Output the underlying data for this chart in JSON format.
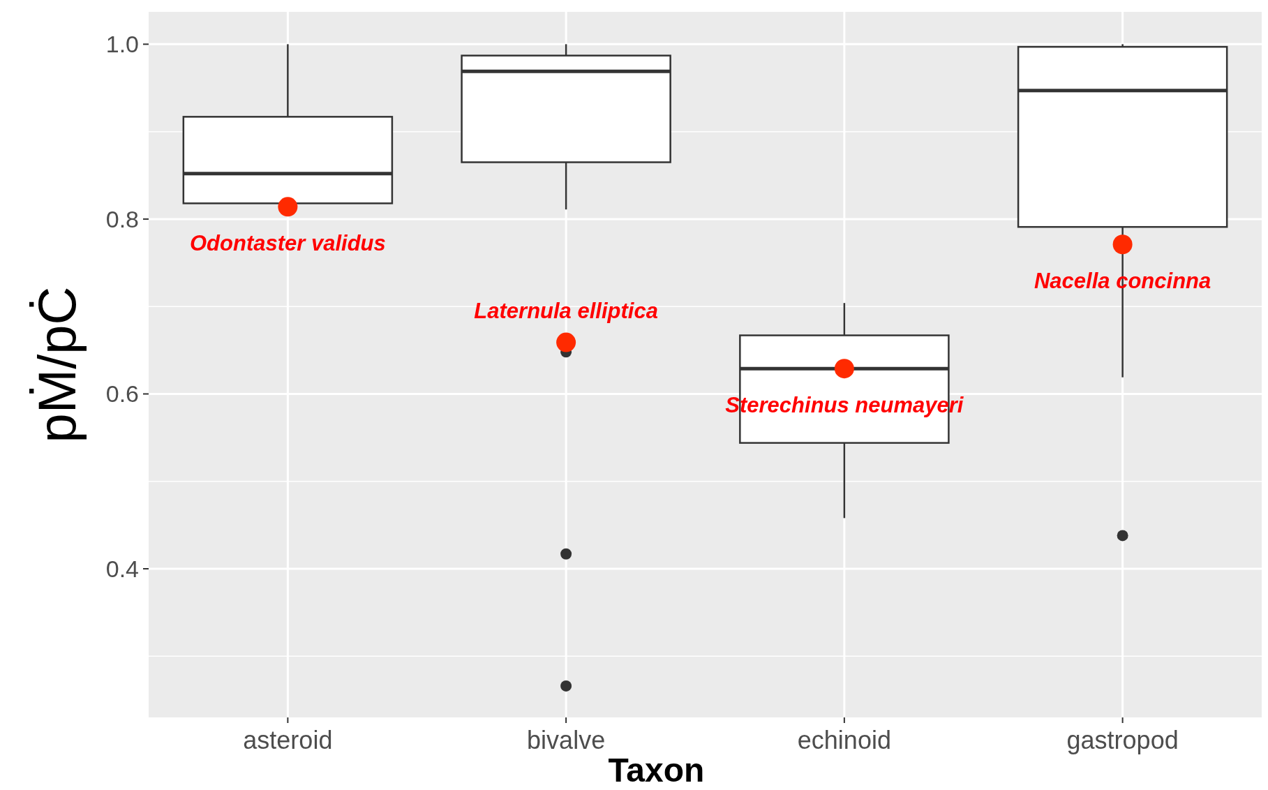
{
  "chart_data": {
    "type": "box",
    "xlabel": "Taxon",
    "ylabel": "pṀ/pĊ",
    "categories": [
      "asteroid",
      "bivalve",
      "echinoid",
      "gastropod"
    ],
    "boxes": [
      {
        "low": 0.818,
        "q1": 0.818,
        "median": 0.852,
        "q3": 0.917,
        "high": 1.0
      },
      {
        "low": 0.811,
        "q1": 0.865,
        "median": 0.969,
        "q3": 0.987,
        "high": 1.0,
        "outliers": [
          0.648,
          0.417,
          0.266
        ]
      },
      {
        "low": 0.458,
        "q1": 0.544,
        "median": 0.629,
        "q3": 0.667,
        "high": 0.704
      },
      {
        "low": 0.619,
        "q1": 0.791,
        "median": 0.947,
        "q3": 0.997,
        "high": 1.0,
        "outliers": [
          0.438
        ]
      }
    ],
    "series": [
      {
        "type": "scatter",
        "color": "#ff2a00",
        "x": [
          "asteroid",
          "bivalve",
          "echinoid",
          "gastropod"
        ],
        "values": [
          0.814,
          0.659,
          0.629,
          0.771
        ]
      }
    ],
    "ylim": [
      0.23,
      1.037
    ],
    "yticks": [
      {
        "value": 0.3,
        "label": null
      },
      0.4,
      {
        "value": 0.5,
        "label": null
      },
      0.6,
      {
        "value": 0.7,
        "label": null
      },
      0.8,
      {
        "value": 0.9,
        "label": null
      },
      {
        "value": 1.0,
        "label": "1.0"
      }
    ],
    "grid": true,
    "annotations": [
      {
        "text": "Odontaster validus",
        "x": "asteroid",
        "y": 0.814
      },
      {
        "text": "Laternula elliptica",
        "x": "bivalve",
        "y": 0.659
      },
      {
        "text": "Sterechinus neumayeri",
        "x": "echinoid",
        "y": 0.629
      },
      {
        "text": "Nacella concinna",
        "x": "gastropod",
        "y": 0.771
      }
    ]
  }
}
